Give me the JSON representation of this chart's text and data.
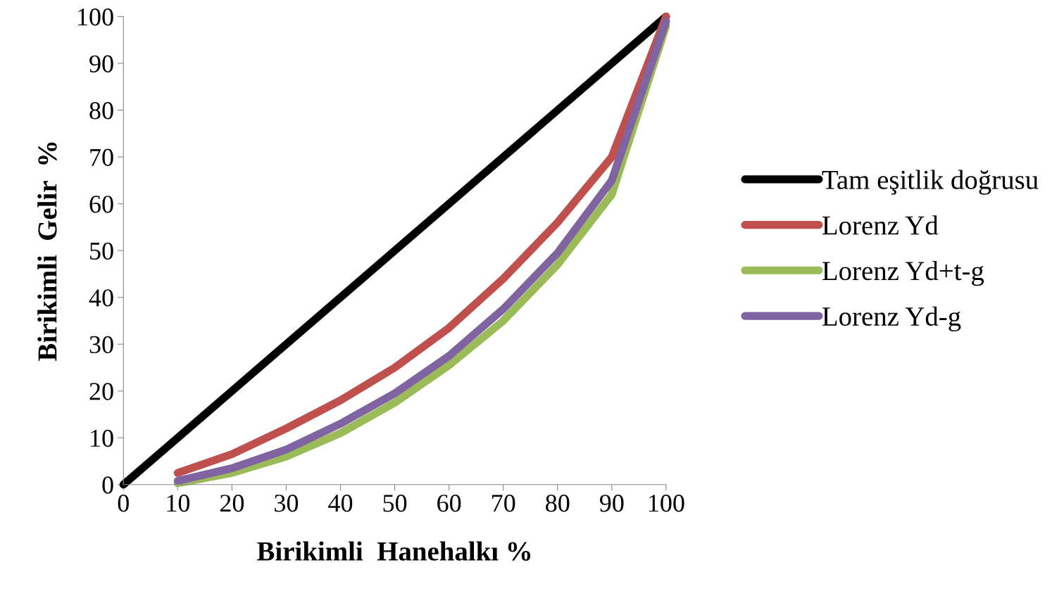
{
  "chart_data": {
    "type": "line",
    "xlabel": "Birikimli  Hanehalkı %",
    "ylabel": "Birikimli  Gelir  %",
    "xlim": [
      0,
      100
    ],
    "ylim": [
      0,
      100
    ],
    "xticks": [
      0,
      10,
      20,
      30,
      40,
      50,
      60,
      70,
      80,
      90,
      100
    ],
    "yticks": [
      0,
      10,
      20,
      30,
      40,
      50,
      60,
      70,
      80,
      90,
      100
    ],
    "grid": false,
    "legend": "right",
    "marker": "none",
    "line_style": "solid",
    "series": [
      {
        "name": "Tam eşitlik doğrusu",
        "color": "#000000",
        "x": [
          0,
          100
        ],
        "values": [
          0,
          100
        ]
      },
      {
        "name": "Lorenz Yd",
        "color": "#c0504d",
        "x": [
          10,
          20,
          30,
          40,
          50,
          60,
          70,
          80,
          90,
          100
        ],
        "values": [
          2.5,
          6.5,
          12,
          18,
          25,
          33.5,
          44,
          56,
          70,
          100
        ]
      },
      {
        "name": "Lorenz Yd+t-g",
        "color": "#9bbb59",
        "x": [
          10,
          20,
          30,
          40,
          50,
          60,
          70,
          80,
          90,
          100
        ],
        "values": [
          0.3,
          2.5,
          6,
          11,
          17.5,
          25.5,
          35,
          47,
          62,
          98
        ]
      },
      {
        "name": "Lorenz Yd-g",
        "color": "#8064a2",
        "x": [
          10,
          20,
          30,
          40,
          50,
          60,
          70,
          80,
          90,
          100
        ],
        "values": [
          0.8,
          3.5,
          7.5,
          13,
          19.5,
          27.5,
          37.5,
          49.5,
          65,
          99
        ]
      }
    ]
  }
}
